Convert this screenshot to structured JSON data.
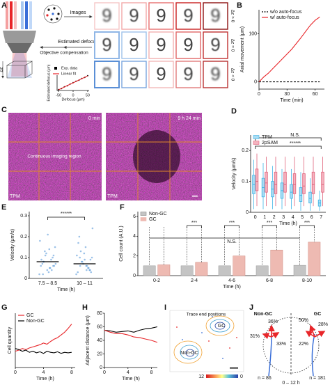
{
  "panel_labels": [
    "A",
    "B",
    "C",
    "D",
    "E",
    "F",
    "G",
    "H",
    "I",
    "J"
  ],
  "figure_a": {
    "images": "Images",
    "estimated_defocus": "Estimated defocus",
    "objective_compensation": "Objective compensation",
    "dz_axis": "Δz",
    "dz_labels": [
      "Δz > 0",
      "Δz = 0",
      "Δz < 0"
    ],
    "digits": [
      [
        "9",
        "9",
        "9",
        "9",
        "9"
      ],
      [
        "9",
        "9",
        "9",
        "9",
        "9"
      ],
      [
        "9",
        "9",
        "9",
        "9",
        "9"
      ]
    ]
  },
  "figure_c": {
    "time_left": "0 min",
    "time_right": "9 h 24 min",
    "modality_left": "TPM",
    "modality_right": "TPM",
    "region": "Continuous imaging region"
  },
  "figure_i": {
    "title": "Trace end positions",
    "gc": "GC",
    "non_gc": "Non-GC",
    "colorbar_left": "12",
    "colorbar_right": "0"
  },
  "figure_j": {
    "non_gc": "Non-GC",
    "gc": "GC",
    "non_gc_top": "36%",
    "non_gc_left": "31%",
    "non_gc_right": "33%",
    "gc_top": "50%",
    "gc_right": "28%",
    "gc_left": "22%",
    "n_left": "n = 86",
    "time": "0 – 12 h",
    "n_right": "n = 181"
  },
  "chart_data": [
    {
      "type": "line",
      "xlabel": "Time (min)",
      "ylabel": "Axial movement (μm)",
      "xlim": [
        0,
        70
      ],
      "ylim": [
        -15,
        150
      ],
      "xticks": [
        0,
        30,
        60
      ],
      "yticks": [
        0,
        100
      ],
      "legend": "upper left",
      "x": [
        0,
        5,
        10,
        15,
        20,
        25,
        30,
        35,
        40,
        45,
        50,
        55,
        60,
        65
      ],
      "series": [
        {
          "name": "w/o auto-focus",
          "color": "#000000",
          "style": "dashed",
          "values": [
            0,
            0,
            0,
            0,
            0,
            0,
            0,
            0,
            0,
            0,
            0,
            0,
            0,
            0
          ]
        },
        {
          "name": "w/ auto-focus",
          "color": "#e8262a",
          "style": "solid",
          "values": [
            0,
            10,
            18,
            28,
            38,
            48,
            58,
            68,
            80,
            92,
            105,
            118,
            128,
            135
          ]
        }
      ]
    },
    {
      "type": "box",
      "xlabel": "Time (h)",
      "ylabel": "Velocity (μm/s)",
      "categories": [
        "0",
        "1",
        "2",
        "3",
        "4",
        "5",
        "6",
        "7"
      ],
      "ylim": [
        0,
        0.25
      ],
      "yticks": [
        0,
        0.1,
        0.2
      ],
      "legend": "upper left",
      "annotations": [
        "N.S.",
        "******"
      ],
      "series": [
        {
          "name": "TPM",
          "color": "#3db4e6",
          "fill": "#a9dcf3",
          "whislo": [
            0.01,
            0.01,
            0.01,
            0.01,
            0.01,
            0.005,
            0.005,
            0.005
          ],
          "q1": [
            0.06,
            0.05,
            0.05,
            0.045,
            0.045,
            0.035,
            0.03,
            0.02
          ],
          "median": [
            0.09,
            0.08,
            0.075,
            0.07,
            0.065,
            0.055,
            0.045,
            0.03
          ],
          "q3": [
            0.12,
            0.11,
            0.1,
            0.095,
            0.09,
            0.08,
            0.065,
            0.04
          ],
          "whishi": [
            0.17,
            0.16,
            0.15,
            0.14,
            0.14,
            0.13,
            0.11,
            0.07
          ]
        },
        {
          "name": "2pSAM",
          "color": "#e0607a",
          "fill": "#f4b3bf",
          "whislo": [
            0.02,
            0.02,
            0.02,
            0.02,
            0.02,
            0.02,
            0.02,
            0.02
          ],
          "q1": [
            0.07,
            0.065,
            0.06,
            0.065,
            0.06,
            0.06,
            0.06,
            0.065
          ],
          "median": [
            0.1,
            0.095,
            0.09,
            0.09,
            0.09,
            0.085,
            0.09,
            0.09
          ],
          "q3": [
            0.14,
            0.13,
            0.13,
            0.13,
            0.125,
            0.125,
            0.13,
            0.13
          ],
          "whishi": [
            0.19,
            0.18,
            0.18,
            0.18,
            0.18,
            0.18,
            0.18,
            0.18
          ]
        }
      ]
    },
    {
      "type": "strip",
      "xlabel": "Time (h)",
      "ylabel": "Velocity (μm/s)",
      "categories": [
        "7.5 – 8.5",
        "10 – 11"
      ],
      "ylim": [
        0,
        0.32
      ],
      "yticks": [
        0,
        0.1,
        0.2,
        0.3
      ],
      "color": "#4a8fd6",
      "annotations": [
        "******"
      ],
      "means": [
        0.08,
        0.07
      ],
      "points": [
        [
          0.02,
          0.05,
          0.08,
          0.11,
          0.04,
          0.06,
          0.09,
          0.13,
          0.15,
          0.03,
          0.07,
          0.1,
          0.12,
          0.18,
          0.05,
          0.08,
          0.06,
          0.21,
          0.09,
          0.04,
          0.11,
          0.07,
          0.14,
          0.02,
          0.06
        ],
        [
          0.02,
          0.04,
          0.06,
          0.09,
          0.12,
          0.03,
          0.05,
          0.08,
          0.1,
          0.15,
          0.2,
          0.04,
          0.07,
          0.11,
          0.06,
          0.13,
          0.03,
          0.09,
          0.17,
          0.05,
          0.08,
          0.24,
          0.06,
          0.1,
          0.04
        ]
      ]
    },
    {
      "type": "bar",
      "xlabel": "Time (h)",
      "ylabel": "Cell count (A.U.)",
      "categories": [
        "0-2",
        "2-4",
        "4-6",
        "6-8",
        "8-10"
      ],
      "ylim": [
        0,
        6.5
      ],
      "yticks": [
        0,
        2,
        4,
        6
      ],
      "legend": "upper left",
      "annotations": [
        "***",
        "***",
        "***",
        "***",
        "N.S."
      ],
      "series": [
        {
          "name": "Non-GC",
          "color": "#c4c4c4",
          "values": [
            1,
            1,
            1,
            1,
            1.05
          ]
        },
        {
          "name": "GC",
          "color": "#eebab2",
          "values": [
            1.1,
            1.35,
            2.0,
            2.6,
            3.4
          ]
        }
      ]
    },
    {
      "type": "line",
      "xlabel": "Time (h)",
      "ylabel": "Cell quantity",
      "xlim": [
        0,
        8.5
      ],
      "ylim": [
        0,
        100
      ],
      "xticks": [
        0,
        4,
        8
      ],
      "legend": "upper left",
      "x": [
        0,
        0.5,
        1,
        1.5,
        2,
        2.5,
        3,
        3.5,
        4,
        4.5,
        5,
        5.5,
        6,
        6.5,
        7,
        7.5,
        8
      ],
      "series": [
        {
          "name": "GC",
          "color": "#e8262a",
          "style": "solid",
          "values": [
            30,
            32,
            35,
            33,
            36,
            38,
            40,
            42,
            45,
            43,
            48,
            52,
            55,
            60,
            65,
            72,
            80
          ]
        },
        {
          "name": "Non-GC",
          "color": "#000000",
          "style": "solid",
          "values": [
            35,
            33,
            30,
            32,
            28,
            30,
            27,
            29,
            26,
            30,
            28,
            27,
            29,
            26,
            28,
            27,
            28
          ]
        }
      ]
    },
    {
      "type": "line",
      "xlabel": "Time (h)",
      "ylabel": "Adjacent distance (μm)",
      "xlim": [
        0,
        9
      ],
      "ylim": [
        0,
        80
      ],
      "xticks": [
        0,
        4,
        8
      ],
      "yticks": [
        0,
        20,
        40,
        60,
        80
      ],
      "x": [
        0,
        1,
        2,
        3,
        4,
        5,
        6,
        7,
        8,
        9
      ],
      "series": [
        {
          "color": "#000000",
          "style": "solid",
          "values": [
            55,
            54,
            52,
            53,
            54,
            52,
            55,
            57,
            58,
            60
          ]
        },
        {
          "color": "#e8262a",
          "style": "solid",
          "values": [
            55,
            52,
            50,
            50,
            48,
            45,
            44,
            42,
            40,
            37
          ]
        }
      ]
    },
    {
      "type": "line",
      "xlabel": "Defocus (μm)",
      "ylabel": "Estimated defocus (μm)",
      "xlim": [
        -55,
        55
      ],
      "ylim": [
        -55,
        55
      ],
      "xticks": [
        -50,
        0,
        50
      ],
      "legend": "upper left",
      "x": [
        -50,
        -40,
        -30,
        -20,
        -10,
        0,
        10,
        20,
        30,
        40,
        50
      ],
      "series": [
        {
          "name": "Exp. data",
          "color": "#000000",
          "style": "marker",
          "values": [
            -49,
            -41,
            -29,
            -21,
            -9,
            1,
            11,
            19,
            31,
            39,
            51
          ]
        },
        {
          "name": "Linear fit",
          "color": "#e8262a",
          "style": "solid",
          "values": [
            -50,
            -40,
            -30,
            -20,
            -10,
            0,
            10,
            20,
            30,
            40,
            50
          ]
        }
      ]
    }
  ]
}
